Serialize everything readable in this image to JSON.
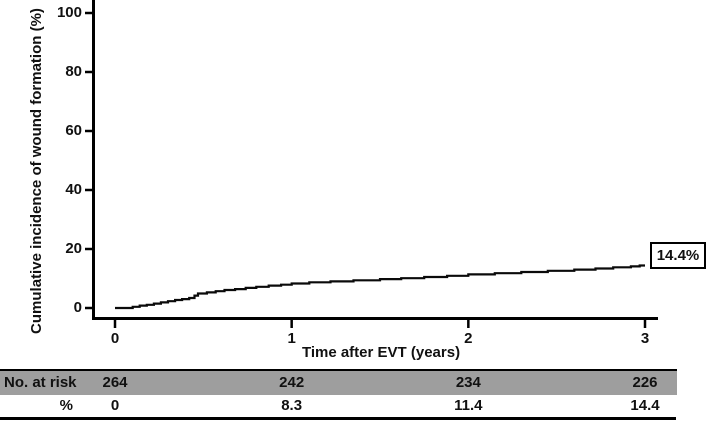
{
  "chart_data": {
    "type": "line",
    "subtype": "step",
    "title": "",
    "xlabel": "Time after EVT (years)",
    "ylabel": "Cumulative incidence of wound formation (%)",
    "xlim": [
      0,
      3
    ],
    "ylim": [
      0,
      100
    ],
    "x_ticks": [
      "0",
      "1",
      "2",
      "3"
    ],
    "y_ticks": [
      "0",
      "20",
      "40",
      "60",
      "80",
      "100"
    ],
    "grid": false,
    "legend": false,
    "annotation": {
      "text": "14.4%",
      "x": 3,
      "y": 14.4
    },
    "series": [
      {
        "name": "Cumulative incidence of wound formation",
        "color": "#0a0a0a",
        "step": true,
        "key_values": {
          "at_1_year_pct": 8.3,
          "at_2_years_pct": 11.4,
          "at_3_years_pct": 14.4
        },
        "points": [
          [
            0,
            0
          ],
          [
            0.06,
            0
          ],
          [
            0.1,
            0.4
          ],
          [
            0.14,
            0.8
          ],
          [
            0.18,
            1.1
          ],
          [
            0.22,
            1.5
          ],
          [
            0.26,
            1.9
          ],
          [
            0.3,
            2.3
          ],
          [
            0.34,
            2.7
          ],
          [
            0.38,
            3.0
          ],
          [
            0.42,
            3.4
          ],
          [
            0.45,
            4.2
          ],
          [
            0.47,
            4.9
          ],
          [
            0.52,
            5.3
          ],
          [
            0.57,
            5.7
          ],
          [
            0.62,
            6.1
          ],
          [
            0.68,
            6.4
          ],
          [
            0.74,
            6.8
          ],
          [
            0.8,
            7.2
          ],
          [
            0.87,
            7.6
          ],
          [
            0.94,
            7.9
          ],
          [
            1.0,
            8.3
          ],
          [
            1.1,
            8.7
          ],
          [
            1.22,
            9.0
          ],
          [
            1.35,
            9.4
          ],
          [
            1.5,
            9.8
          ],
          [
            1.62,
            10.1
          ],
          [
            1.75,
            10.5
          ],
          [
            1.88,
            10.9
          ],
          [
            2.0,
            11.4
          ],
          [
            2.15,
            11.8
          ],
          [
            2.3,
            12.2
          ],
          [
            2.45,
            12.6
          ],
          [
            2.6,
            13.0
          ],
          [
            2.72,
            13.4
          ],
          [
            2.82,
            13.8
          ],
          [
            2.92,
            14.1
          ],
          [
            2.97,
            14.4
          ],
          [
            3.0,
            14.4
          ]
        ]
      }
    ]
  },
  "risk_table": {
    "rows": [
      {
        "label": "No. at risk",
        "values": [
          "264",
          "242",
          "234",
          "226"
        ],
        "shaded": true
      },
      {
        "label": "%",
        "values": [
          "0",
          "8.3",
          "11.4",
          "14.4"
        ],
        "shaded": false
      }
    ]
  },
  "colors": {
    "line": "#0a0a0a",
    "axis": "#000000",
    "row_shade": "#9e9e9e",
    "background": "#ffffff",
    "text": "#111111"
  }
}
